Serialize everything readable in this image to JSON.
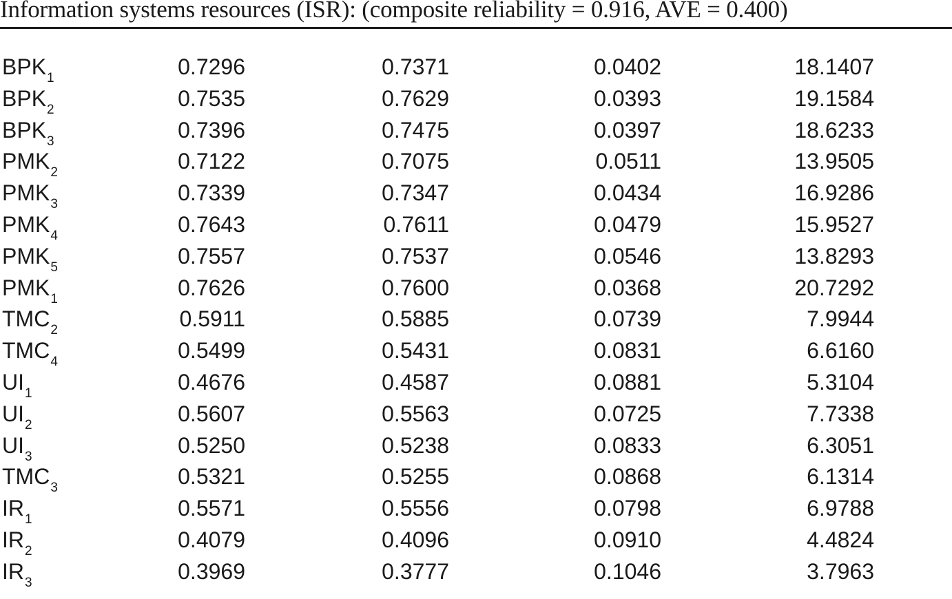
{
  "heading": "Information systems resources (ISR): (composite reliability = 0.916, AVE = 0.400)",
  "rows": [
    {
      "name": "BPK",
      "sub": "1",
      "v1": "0.7296",
      "v2": "0.7371",
      "v3": "0.0402",
      "v4": "18.1407"
    },
    {
      "name": "BPK",
      "sub": "2",
      "v1": "0.7535",
      "v2": "0.7629",
      "v3": "0.0393",
      "v4": "19.1584"
    },
    {
      "name": "BPK",
      "sub": "3",
      "v1": "0.7396",
      "v2": "0.7475",
      "v3": "0.0397",
      "v4": "18.6233"
    },
    {
      "name": "PMK",
      "sub": "2",
      "v1": "0.7122",
      "v2": "0.7075",
      "v3": "0.0511",
      "v4": "13.9505"
    },
    {
      "name": "PMK",
      "sub": "3",
      "v1": "0.7339",
      "v2": "0.7347",
      "v3": "0.0434",
      "v4": "16.9286"
    },
    {
      "name": "PMK",
      "sub": "4",
      "v1": "0.7643",
      "v2": "0.7611",
      "v3": "0.0479",
      "v4": "15.9527"
    },
    {
      "name": "PMK",
      "sub": "5",
      "v1": "0.7557",
      "v2": "0.7537",
      "v3": "0.0546",
      "v4": "13.8293"
    },
    {
      "name": "PMK",
      "sub": "1",
      "v1": "0.7626",
      "v2": "0.7600",
      "v3": "0.0368",
      "v4": "20.7292"
    },
    {
      "name": "TMC",
      "sub": "2",
      "v1": "0.5911",
      "v2": "0.5885",
      "v3": "0.0739",
      "v4": "7.9944"
    },
    {
      "name": "TMC",
      "sub": "4",
      "v1": "0.5499",
      "v2": "0.5431",
      "v3": "0.0831",
      "v4": "6.6160"
    },
    {
      "name": "UI",
      "sub": "1",
      "v1": "0.4676",
      "v2": "0.4587",
      "v3": "0.0881",
      "v4": "5.3104"
    },
    {
      "name": "UI",
      "sub": "2",
      "v1": "0.5607",
      "v2": "0.5563",
      "v3": "0.0725",
      "v4": "7.7338"
    },
    {
      "name": "UI",
      "sub": "3",
      "v1": "0.5250",
      "v2": "0.5238",
      "v3": "0.0833",
      "v4": "6.3051"
    },
    {
      "name": "TMC",
      "sub": "3",
      "v1": "0.5321",
      "v2": "0.5255",
      "v3": "0.0868",
      "v4": "6.1314"
    },
    {
      "name": "IR",
      "sub": "1",
      "v1": "0.5571",
      "v2": "0.5556",
      "v3": "0.0798",
      "v4": "6.9788"
    },
    {
      "name": "IR",
      "sub": "2",
      "v1": "0.4079",
      "v2": "0.4096",
      "v3": "0.0910",
      "v4": "4.4824"
    },
    {
      "name": "IR",
      "sub": "3",
      "v1": "0.3969",
      "v2": "0.3777",
      "v3": "0.1046",
      "v4": "3.7963"
    }
  ]
}
